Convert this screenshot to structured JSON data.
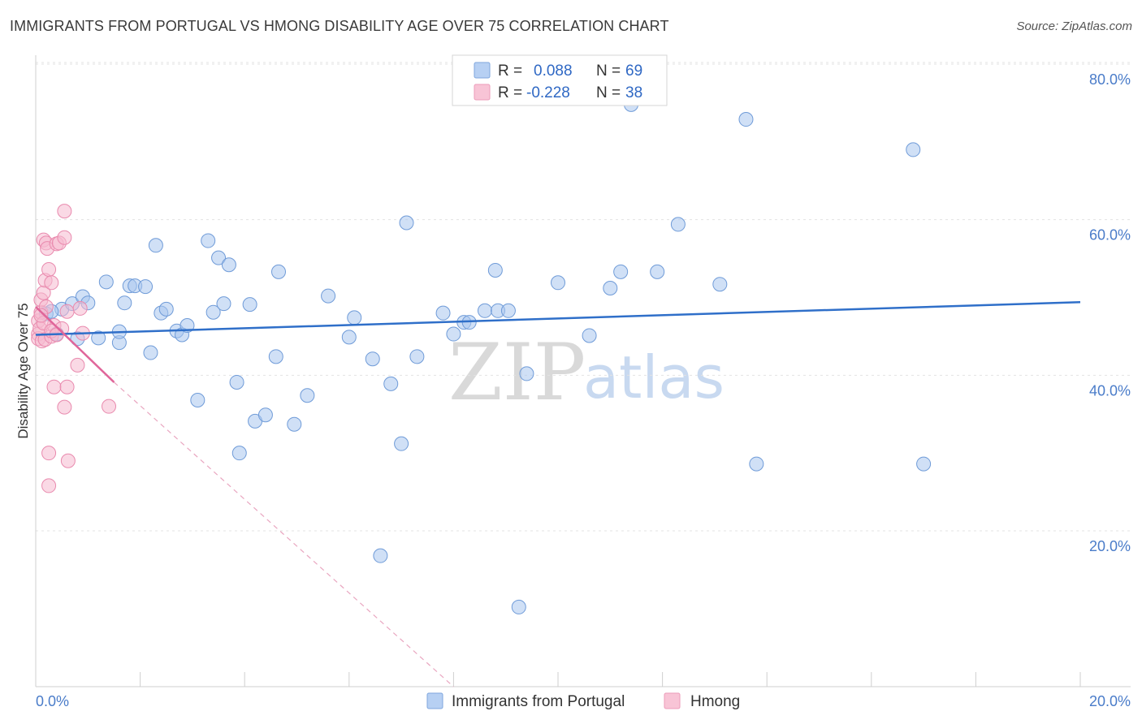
{
  "chart_data": {
    "type": "scatter",
    "title": "IMMIGRANTS FROM PORTUGAL VS HMONG DISABILITY AGE OVER 75 CORRELATION CHART",
    "source": "Source: ZipAtlas.com",
    "ylabel": "Disability Age Over 75",
    "xlim": [
      0,
      20
    ],
    "ylim": [
      0,
      84
    ],
    "x_tick_labels": [
      "0.0%",
      "20.0%"
    ],
    "y_tick_values": [
      20,
      40,
      60,
      80
    ],
    "y_tick_labels": [
      "20.0%",
      "40.0%",
      "60.0%",
      "80.0%"
    ],
    "legend": {
      "rows": [
        {
          "r_label": "R =",
          "r_value": "0.088",
          "n_label": "N =",
          "n_value": "69"
        },
        {
          "r_label": "R =",
          "r_value": "-0.228",
          "n_label": "N =",
          "n_value": "38"
        }
      ]
    },
    "watermark": {
      "zip": "ZIP",
      "atlas": "atlas"
    },
    "series": [
      {
        "name": "Immigrants from Portugal",
        "color": "#a9c6ef",
        "stroke": "#6f9bd8",
        "line_color": "#2f6fc9",
        "trend": {
          "x0": 0,
          "y0": 45.2,
          "x1": 20,
          "y1": 49.4
        },
        "points": [
          [
            0.2,
            47.9
          ],
          [
            0.4,
            45.3
          ],
          [
            0.5,
            48.5
          ],
          [
            0.7,
            49.2
          ],
          [
            0.8,
            44.7
          ],
          [
            0.9,
            50.1
          ],
          [
            1.0,
            49.3
          ],
          [
            1.2,
            44.8
          ],
          [
            1.35,
            52.0
          ],
          [
            1.6,
            44.2
          ],
          [
            1.6,
            45.6
          ],
          [
            1.7,
            49.3
          ],
          [
            1.8,
            51.5
          ],
          [
            1.9,
            51.5
          ],
          [
            2.1,
            51.4
          ],
          [
            2.2,
            42.9
          ],
          [
            2.3,
            56.7
          ],
          [
            2.4,
            48.0
          ],
          [
            2.5,
            48.5
          ],
          [
            2.7,
            45.7
          ],
          [
            2.8,
            45.2
          ],
          [
            2.9,
            46.4
          ],
          [
            3.1,
            36.8
          ],
          [
            3.3,
            57.3
          ],
          [
            3.4,
            48.1
          ],
          [
            3.5,
            55.1
          ],
          [
            3.6,
            49.2
          ],
          [
            3.7,
            54.2
          ],
          [
            3.85,
            39.1
          ],
          [
            3.9,
            30.0
          ],
          [
            4.1,
            49.1
          ],
          [
            4.2,
            34.1
          ],
          [
            4.4,
            34.9
          ],
          [
            4.6,
            42.4
          ],
          [
            4.65,
            53.3
          ],
          [
            4.95,
            33.7
          ],
          [
            5.2,
            37.4
          ],
          [
            5.6,
            50.2
          ],
          [
            6.0,
            44.9
          ],
          [
            6.1,
            47.4
          ],
          [
            6.45,
            42.1
          ],
          [
            6.6,
            16.8
          ],
          [
            6.8,
            38.9
          ],
          [
            7.0,
            31.2
          ],
          [
            7.1,
            59.6
          ],
          [
            7.3,
            42.4
          ],
          [
            7.8,
            48.0
          ],
          [
            8.0,
            45.3
          ],
          [
            8.2,
            46.8
          ],
          [
            8.3,
            46.8
          ],
          [
            8.6,
            48.3
          ],
          [
            8.8,
            53.5
          ],
          [
            8.85,
            48.3
          ],
          [
            9.05,
            48.3
          ],
          [
            9.25,
            10.2
          ],
          [
            9.4,
            40.2
          ],
          [
            10.0,
            51.9
          ],
          [
            10.6,
            45.1
          ],
          [
            11.0,
            51.2
          ],
          [
            11.2,
            53.3
          ],
          [
            11.4,
            74.8
          ],
          [
            11.9,
            53.3
          ],
          [
            12.3,
            59.4
          ],
          [
            13.1,
            51.7
          ],
          [
            13.6,
            72.9
          ],
          [
            13.8,
            28.6
          ],
          [
            16.8,
            69.0
          ],
          [
            17.0,
            28.6
          ],
          [
            0.3,
            48.2
          ]
        ]
      },
      {
        "name": "Hmong",
        "color": "#f5b9cf",
        "stroke": "#e98aae",
        "line_color": "#e0669a",
        "trend": {
          "x0": 0,
          "y0": 48.8,
          "x1": 1.5,
          "y1": 39.1
        },
        "trend_dash": {
          "x0": 1.5,
          "y0": 39.1,
          "x1": 8.0,
          "y1": -2.0
        },
        "points": [
          [
            0.05,
            47.0
          ],
          [
            0.05,
            45.3
          ],
          [
            0.05,
            44.7
          ],
          [
            0.08,
            46.0
          ],
          [
            0.1,
            48.1
          ],
          [
            0.1,
            49.7
          ],
          [
            0.12,
            44.4
          ],
          [
            0.15,
            57.4
          ],
          [
            0.15,
            50.6
          ],
          [
            0.18,
            52.2
          ],
          [
            0.18,
            44.6
          ],
          [
            0.2,
            57.0
          ],
          [
            0.2,
            48.8
          ],
          [
            0.22,
            56.3
          ],
          [
            0.25,
            53.6
          ],
          [
            0.25,
            30.0
          ],
          [
            0.25,
            25.8
          ],
          [
            0.3,
            51.9
          ],
          [
            0.3,
            45.0
          ],
          [
            0.35,
            46.4
          ],
          [
            0.35,
            38.5
          ],
          [
            0.4,
            56.9
          ],
          [
            0.45,
            57.0
          ],
          [
            0.5,
            46.0
          ],
          [
            0.55,
            57.7
          ],
          [
            0.55,
            61.1
          ],
          [
            0.55,
            35.9
          ],
          [
            0.6,
            48.2
          ],
          [
            0.6,
            38.5
          ],
          [
            0.62,
            29.0
          ],
          [
            0.8,
            41.3
          ],
          [
            0.85,
            48.6
          ],
          [
            0.9,
            45.4
          ],
          [
            1.4,
            36.0
          ],
          [
            0.15,
            46.7
          ],
          [
            0.3,
            45.7
          ],
          [
            0.1,
            47.7
          ],
          [
            0.4,
            45.2
          ]
        ]
      }
    ]
  }
}
